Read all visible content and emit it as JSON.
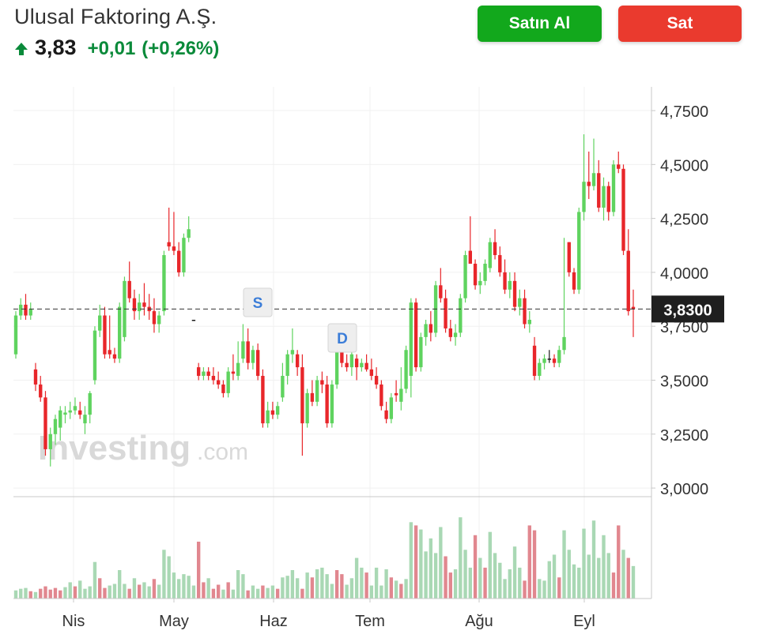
{
  "header": {
    "title": "Ulusal Faktoring A.Ş.",
    "price": "3,83",
    "change": "+0,01",
    "change_pct": "(+0,26%)",
    "arrow_icon": "arrow-up-icon"
  },
  "actions": {
    "buy_label": "Satın Al",
    "sell_label": "Sat"
  },
  "colors": {
    "up": "#5fd35f",
    "down": "#e8262a",
    "up_text": "#0a8a3a",
    "buy_button": "#12a81c",
    "sell_button": "#ea3a2e",
    "volume_up": "#a9d8b4",
    "volume_down": "#e1878f",
    "last_price_label_bg": "#1f1f1f"
  },
  "watermark": {
    "brand": "Investing",
    "suffix": ".com"
  },
  "chart_data": {
    "type": "candlestick",
    "y_axis_ticks": [
      "4,7500",
      "4,5000",
      "4,2500",
      "4,0000",
      "3,7500",
      "3,5000",
      "3,2500",
      "3,0000"
    ],
    "y_tick_values": [
      4.75,
      4.5,
      4.25,
      4.0,
      3.75,
      3.5,
      3.25,
      3.0
    ],
    "ylim": [
      2.96,
      4.86
    ],
    "x_axis_labels": [
      "Nis",
      "May",
      "Haz",
      "Tem",
      "Ağu",
      "Eyl"
    ],
    "last_price": 3.83,
    "last_price_label": "3,8300",
    "markers": [
      {
        "label": "S",
        "date_label": "Haz"
      },
      {
        "label": "D",
        "date_label": "Tem"
      }
    ],
    "candles": [
      [
        3.62,
        3.82,
        3.6,
        3.8
      ],
      [
        3.8,
        3.88,
        3.78,
        3.85
      ],
      [
        3.85,
        3.9,
        3.78,
        3.8
      ],
      [
        3.8,
        3.86,
        3.78,
        3.83
      ],
      [
        3.55,
        3.58,
        3.45,
        3.48
      ],
      [
        3.48,
        3.52,
        3.4,
        3.42
      ],
      [
        3.42,
        3.45,
        3.15,
        3.18
      ],
      [
        3.18,
        3.28,
        3.1,
        3.25
      ],
      [
        3.25,
        3.34,
        3.2,
        3.32
      ],
      [
        3.28,
        3.38,
        3.22,
        3.36
      ],
      [
        3.34,
        3.38,
        3.3,
        3.35
      ],
      [
        3.35,
        3.4,
        3.32,
        3.36
      ],
      [
        3.36,
        3.42,
        3.34,
        3.38
      ],
      [
        3.36,
        3.4,
        3.32,
        3.34
      ],
      [
        3.3,
        3.38,
        3.25,
        3.34
      ],
      [
        3.34,
        3.45,
        3.3,
        3.44
      ],
      [
        3.5,
        3.75,
        3.48,
        3.73
      ],
      [
        3.73,
        3.85,
        3.7,
        3.8
      ],
      [
        3.8,
        3.84,
        3.6,
        3.62
      ],
      [
        3.64,
        3.8,
        3.6,
        3.62
      ],
      [
        3.62,
        3.65,
        3.58,
        3.6
      ],
      [
        3.6,
        3.86,
        3.58,
        3.84
      ],
      [
        3.7,
        3.98,
        3.68,
        3.96
      ],
      [
        3.96,
        4.05,
        3.86,
        3.88
      ],
      [
        3.88,
        3.92,
        3.78,
        3.82
      ],
      [
        3.82,
        3.9,
        3.78,
        3.86
      ],
      [
        3.86,
        3.95,
        3.8,
        3.84
      ],
      [
        3.84,
        3.9,
        3.78,
        3.82
      ],
      [
        3.82,
        3.88,
        3.72,
        3.76
      ],
      [
        3.76,
        3.82,
        3.72,
        3.8
      ],
      [
        3.82,
        4.1,
        3.8,
        4.08
      ],
      [
        4.14,
        4.3,
        4.1,
        4.12
      ],
      [
        4.12,
        4.28,
        4.08,
        4.1
      ],
      [
        4.1,
        4.14,
        3.98,
        4.0
      ],
      [
        4.0,
        4.18,
        3.98,
        4.16
      ],
      [
        4.16,
        4.26,
        4.14,
        4.2
      ],
      [
        3.78,
        3.78,
        3.78,
        3.78
      ],
      [
        3.56,
        3.58,
        3.5,
        3.52
      ],
      [
        3.52,
        3.56,
        3.5,
        3.54
      ],
      [
        3.54,
        3.56,
        3.5,
        3.52
      ],
      [
        3.52,
        3.56,
        3.48,
        3.5
      ],
      [
        3.5,
        3.54,
        3.46,
        3.48
      ],
      [
        3.48,
        3.5,
        3.42,
        3.44
      ],
      [
        3.44,
        3.56,
        3.42,
        3.54
      ],
      [
        3.54,
        3.62,
        3.5,
        3.53
      ],
      [
        3.52,
        3.68,
        3.5,
        3.58
      ],
      [
        3.6,
        3.76,
        3.58,
        3.68
      ],
      [
        3.68,
        3.74,
        3.55,
        3.58
      ],
      [
        3.58,
        3.66,
        3.55,
        3.64
      ],
      [
        3.64,
        3.67,
        3.5,
        3.52
      ],
      [
        3.52,
        3.55,
        3.28,
        3.3
      ],
      [
        3.3,
        3.4,
        3.28,
        3.36
      ],
      [
        3.36,
        3.4,
        3.32,
        3.34
      ],
      [
        3.34,
        3.4,
        3.32,
        3.38
      ],
      [
        3.42,
        3.58,
        3.4,
        3.52
      ],
      [
        3.52,
        3.64,
        3.48,
        3.62
      ],
      [
        3.62,
        3.74,
        3.58,
        3.64
      ],
      [
        3.62,
        3.64,
        3.52,
        3.56
      ],
      [
        3.56,
        3.62,
        3.15,
        3.3
      ],
      [
        3.3,
        3.46,
        3.28,
        3.44
      ],
      [
        3.44,
        3.5,
        3.38,
        3.4
      ],
      [
        3.4,
        3.52,
        3.38,
        3.5
      ],
      [
        3.5,
        3.54,
        3.44,
        3.48
      ],
      [
        3.48,
        3.52,
        3.28,
        3.3
      ],
      [
        3.3,
        3.5,
        3.28,
        3.48
      ],
      [
        3.48,
        3.66,
        3.46,
        3.64
      ],
      [
        3.64,
        3.68,
        3.56,
        3.58
      ],
      [
        3.58,
        3.62,
        3.54,
        3.56
      ],
      [
        3.56,
        3.64,
        3.52,
        3.62
      ],
      [
        3.6,
        3.62,
        3.5,
        3.56
      ],
      [
        3.56,
        3.6,
        3.54,
        3.58
      ],
      [
        3.58,
        3.62,
        3.54,
        3.55
      ],
      [
        3.55,
        3.6,
        3.5,
        3.52
      ],
      [
        3.52,
        3.56,
        3.46,
        3.48
      ],
      [
        3.48,
        3.5,
        3.36,
        3.38
      ],
      [
        3.36,
        3.4,
        3.3,
        3.32
      ],
      [
        3.32,
        3.44,
        3.3,
        3.42
      ],
      [
        3.44,
        3.5,
        3.4,
        3.43
      ],
      [
        3.4,
        3.56,
        3.36,
        3.46
      ],
      [
        3.46,
        3.66,
        3.44,
        3.64
      ],
      [
        3.52,
        3.88,
        3.42,
        3.86
      ],
      [
        3.86,
        3.88,
        3.54,
        3.56
      ],
      [
        3.56,
        3.72,
        3.54,
        3.7
      ],
      [
        3.7,
        3.78,
        3.66,
        3.76
      ],
      [
        3.76,
        3.82,
        3.68,
        3.72
      ],
      [
        3.72,
        3.96,
        3.7,
        3.94
      ],
      [
        3.94,
        4.02,
        3.86,
        3.88
      ],
      [
        3.88,
        3.92,
        3.72,
        3.74
      ],
      [
        3.74,
        3.78,
        3.68,
        3.7
      ],
      [
        3.7,
        3.76,
        3.66,
        3.72
      ],
      [
        3.72,
        3.9,
        3.7,
        3.88
      ],
      [
        3.88,
        4.1,
        3.86,
        4.08
      ],
      [
        4.1,
        4.26,
        4.04,
        4.04
      ],
      [
        4.04,
        4.06,
        3.92,
        3.94
      ],
      [
        3.94,
        4.0,
        3.9,
        3.96
      ],
      [
        3.96,
        4.06,
        3.94,
        4.04
      ],
      [
        4.02,
        4.16,
        4.0,
        4.14
      ],
      [
        4.14,
        4.2,
        4.06,
        4.08
      ],
      [
        4.08,
        4.12,
        3.98,
        4.0
      ],
      [
        4.0,
        4.06,
        3.9,
        3.92
      ],
      [
        3.92,
        4.0,
        3.88,
        3.96
      ],
      [
        3.96,
        4.0,
        3.82,
        3.84
      ],
      [
        3.84,
        3.92,
        3.8,
        3.88
      ],
      [
        3.88,
        3.92,
        3.74,
        3.76
      ],
      [
        3.76,
        3.82,
        3.72,
        3.78
      ],
      [
        3.66,
        3.7,
        3.5,
        3.52
      ],
      [
        3.52,
        3.6,
        3.5,
        3.58
      ],
      [
        3.58,
        3.62,
        3.55,
        3.6
      ],
      [
        3.6,
        3.64,
        3.58,
        3.6
      ],
      [
        3.6,
        3.62,
        3.56,
        3.58
      ],
      [
        3.58,
        3.66,
        3.56,
        3.64
      ],
      [
        3.64,
        4.16,
        3.62,
        3.7
      ],
      [
        4.14,
        4.14,
        3.98,
        4.0
      ],
      [
        4.0,
        4.02,
        3.9,
        3.92
      ],
      [
        3.92,
        4.3,
        3.9,
        4.28
      ],
      [
        4.28,
        4.64,
        4.24,
        4.42
      ],
      [
        4.42,
        4.56,
        4.34,
        4.4
      ],
      [
        4.4,
        4.62,
        4.38,
        4.46
      ],
      [
        4.46,
        4.52,
        4.28,
        4.3
      ],
      [
        4.3,
        4.44,
        4.24,
        4.4
      ],
      [
        4.4,
        4.42,
        4.24,
        4.28
      ],
      [
        4.28,
        4.52,
        4.26,
        4.5
      ],
      [
        4.5,
        4.56,
        4.46,
        4.48
      ],
      [
        4.48,
        4.5,
        4.08,
        4.1
      ],
      [
        4.1,
        4.2,
        3.8,
        3.82
      ],
      [
        3.84,
        3.92,
        3.7,
        3.83
      ]
    ],
    "volumes": [
      [
        1.0,
        1
      ],
      [
        1.2,
        1
      ],
      [
        1.3,
        1
      ],
      [
        0.9,
        0
      ],
      [
        0.8,
        1
      ],
      [
        1.2,
        0
      ],
      [
        1.5,
        0
      ],
      [
        1.1,
        0
      ],
      [
        1.3,
        0
      ],
      [
        1.0,
        0
      ],
      [
        1.4,
        1
      ],
      [
        2.0,
        1
      ],
      [
        1.5,
        0
      ],
      [
        2.2,
        1
      ],
      [
        1.2,
        1
      ],
      [
        1.5,
        1
      ],
      [
        4.5,
        1
      ],
      [
        2.5,
        0
      ],
      [
        1.3,
        0
      ],
      [
        1.6,
        1
      ],
      [
        1.8,
        1
      ],
      [
        3.5,
        1
      ],
      [
        1.8,
        1
      ],
      [
        1.2,
        0
      ],
      [
        2.5,
        1
      ],
      [
        1.7,
        0
      ],
      [
        2.0,
        1
      ],
      [
        1.5,
        1
      ],
      [
        2.4,
        0
      ],
      [
        1.7,
        1
      ],
      [
        6.0,
        1
      ],
      [
        5.2,
        1
      ],
      [
        3.2,
        1
      ],
      [
        2.4,
        1
      ],
      [
        3.0,
        1
      ],
      [
        2.8,
        1
      ],
      [
        1.6,
        1
      ],
      [
        7.0,
        0
      ],
      [
        2.0,
        0
      ],
      [
        2.5,
        1
      ],
      [
        1.2,
        0
      ],
      [
        1.7,
        0
      ],
      [
        1.1,
        1
      ],
      [
        2.0,
        0
      ],
      [
        1.1,
        1
      ],
      [
        3.5,
        1
      ],
      [
        3.0,
        1
      ],
      [
        1.0,
        0
      ],
      [
        1.6,
        1
      ],
      [
        1.2,
        1
      ],
      [
        1.6,
        0
      ],
      [
        1.3,
        1
      ],
      [
        1.6,
        1
      ],
      [
        1.2,
        0
      ],
      [
        2.6,
        1
      ],
      [
        2.8,
        1
      ],
      [
        3.5,
        1
      ],
      [
        2.5,
        1
      ],
      [
        1.2,
        0
      ],
      [
        3.2,
        1
      ],
      [
        2.6,
        0
      ],
      [
        3.6,
        1
      ],
      [
        3.8,
        1
      ],
      [
        3.0,
        1
      ],
      [
        1.8,
        1
      ],
      [
        3.5,
        0
      ],
      [
        3.0,
        0
      ],
      [
        1.7,
        1
      ],
      [
        2.5,
        1
      ],
      [
        5.0,
        1
      ],
      [
        3.8,
        1
      ],
      [
        3.2,
        0
      ],
      [
        1.6,
        1
      ],
      [
        3.8,
        1
      ],
      [
        1.6,
        1
      ],
      [
        3.6,
        1
      ],
      [
        2.6,
        0
      ],
      [
        2.2,
        1
      ],
      [
        1.8,
        0
      ],
      [
        2.4,
        1
      ],
      [
        9.4,
        1
      ],
      [
        9.0,
        0
      ],
      [
        8.5,
        1
      ],
      [
        5.8,
        1
      ],
      [
        7.4,
        1
      ],
      [
        5.6,
        1
      ],
      [
        8.8,
        1
      ],
      [
        5.2,
        0
      ],
      [
        3.2,
        0
      ],
      [
        3.6,
        1
      ],
      [
        10.0,
        1
      ],
      [
        6.0,
        1
      ],
      [
        3.8,
        1
      ],
      [
        7.8,
        0
      ],
      [
        5.0,
        1
      ],
      [
        3.8,
        0
      ],
      [
        8.2,
        1
      ],
      [
        5.6,
        1
      ],
      [
        4.4,
        1
      ],
      [
        2.4,
        1
      ],
      [
        3.6,
        1
      ],
      [
        6.4,
        1
      ],
      [
        3.8,
        1
      ],
      [
        2.2,
        0
      ],
      [
        9.0,
        0
      ],
      [
        8.4,
        0
      ],
      [
        2.4,
        1
      ],
      [
        2.2,
        1
      ],
      [
        4.6,
        1
      ],
      [
        5.4,
        1
      ],
      [
        2.6,
        0
      ],
      [
        8.4,
        1
      ],
      [
        6.0,
        1
      ],
      [
        4.2,
        1
      ],
      [
        3.8,
        1
      ],
      [
        8.6,
        1
      ],
      [
        5.4,
        1
      ],
      [
        9.6,
        1
      ],
      [
        5.0,
        1
      ],
      [
        7.8,
        1
      ],
      [
        5.6,
        1
      ],
      [
        3.2,
        0
      ],
      [
        9.0,
        0
      ],
      [
        6.0,
        1
      ],
      [
        5.0,
        0
      ],
      [
        4.0,
        1
      ]
    ],
    "volume_ylim": [
      0,
      10.5
    ]
  }
}
